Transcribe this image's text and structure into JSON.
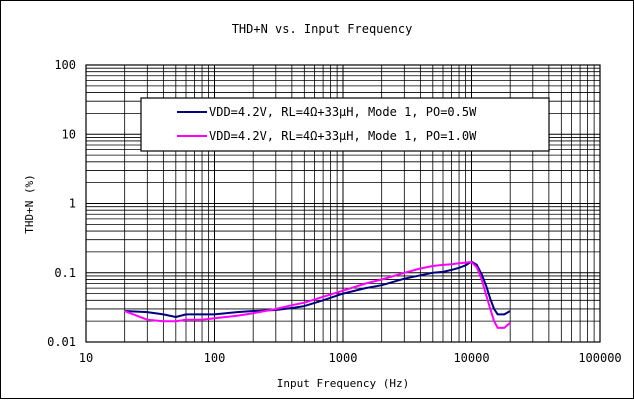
{
  "chart_data": {
    "type": "line",
    "title": "THD+N vs. Input Frequency",
    "xlabel": "Input Frequency (Hz)",
    "ylabel": "THD+N (%)",
    "x_scale": "log",
    "y_scale": "log",
    "xlim": [
      10,
      100000
    ],
    "ylim": [
      0.01,
      100
    ],
    "x_ticks": [
      "10",
      "100",
      "1000",
      "10000",
      "100000"
    ],
    "y_ticks": [
      "100",
      "10",
      "1",
      "0.1",
      "0.01"
    ],
    "grid": true,
    "legend_position": "top-right",
    "series": [
      {
        "name": "VDD=4.2V, RL=4Ω+33μH, Mode 1, PO=0.5W",
        "color": "#000080",
        "x": [
          20,
          30,
          40,
          50,
          60,
          80,
          100,
          150,
          200,
          300,
          400,
          500,
          700,
          1000,
          1500,
          2000,
          3000,
          4000,
          5000,
          6000,
          7000,
          8000,
          9000,
          10000,
          11000,
          12000,
          13000,
          14000,
          15000,
          16000,
          18000,
          20000
        ],
        "y": [
          0.028,
          0.027,
          0.025,
          0.023,
          0.025,
          0.025,
          0.025,
          0.027,
          0.028,
          0.029,
          0.031,
          0.033,
          0.04,
          0.05,
          0.06,
          0.066,
          0.082,
          0.092,
          0.1,
          0.103,
          0.11,
          0.118,
          0.128,
          0.145,
          0.13,
          0.095,
          0.065,
          0.042,
          0.03,
          0.025,
          0.025,
          0.028
        ]
      },
      {
        "name": "VDD=4.2V, RL=4Ω+33μH, Mode 1, PO=1.0W",
        "color": "#ff00ff",
        "x": [
          20,
          30,
          40,
          50,
          60,
          80,
          100,
          150,
          200,
          300,
          400,
          500,
          700,
          1000,
          1500,
          2000,
          3000,
          4000,
          5000,
          6000,
          7000,
          8000,
          9000,
          10000,
          11000,
          12000,
          13000,
          14000,
          15000,
          16000,
          18000,
          20000
        ],
        "y": [
          0.028,
          0.021,
          0.02,
          0.02,
          0.021,
          0.021,
          0.022,
          0.024,
          0.026,
          0.03,
          0.034,
          0.037,
          0.045,
          0.055,
          0.07,
          0.08,
          0.1,
          0.115,
          0.125,
          0.13,
          0.133,
          0.137,
          0.14,
          0.143,
          0.12,
          0.08,
          0.048,
          0.03,
          0.02,
          0.016,
          0.016,
          0.019
        ]
      }
    ]
  }
}
